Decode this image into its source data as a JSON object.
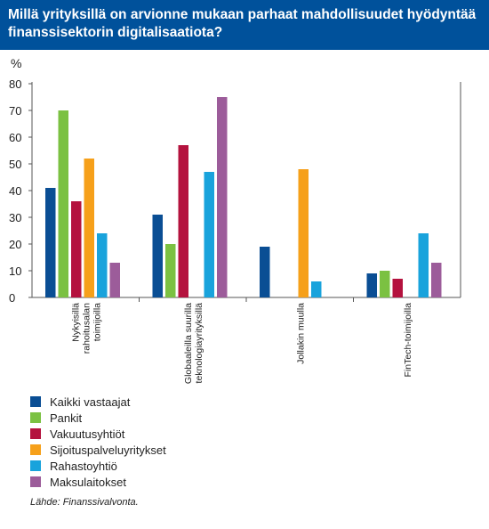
{
  "title": "Millä yrityksillä on arvionne mukaan parhaat mahdollisuudet hyödyntää finanssisektorin digitalisaatiota?",
  "source": "Lähde: Finanssivalvonta.",
  "chart_data": {
    "type": "bar",
    "ylabel": "%",
    "ylim": [
      0,
      80
    ],
    "yticks": [
      0,
      10,
      20,
      30,
      40,
      50,
      60,
      70,
      80
    ],
    "grid": false,
    "legend_position": "bottom-left",
    "categories": [
      [
        "Nykyisillä",
        "rahoitusalan",
        "toimijoilla"
      ],
      [
        "Globaaleilla suurilla",
        "teknologiayrityksillä"
      ],
      [
        "Jollakin muulla"
      ],
      [
        "FinTech-toimijoilla"
      ]
    ],
    "series": [
      {
        "name": "Kaikki vastaajat",
        "color": "#0a4e94",
        "values": [
          41,
          31,
          19,
          9
        ]
      },
      {
        "name": "Pankit",
        "color": "#7bc142",
        "values": [
          70,
          20,
          null,
          10
        ]
      },
      {
        "name": "Vakuutusyhtiöt",
        "color": "#b4123e",
        "values": [
          36,
          57,
          null,
          7
        ]
      },
      {
        "name": "Sijoituspalveluyritykset",
        "color": "#f6a01a",
        "values": [
          52,
          null,
          48,
          null
        ]
      },
      {
        "name": "Rahastoyhtiö",
        "color": "#19a3dc",
        "values": [
          24,
          47,
          6,
          24
        ]
      },
      {
        "name": "Maksulaitokset",
        "color": "#9c5c9a",
        "values": [
          13,
          75,
          null,
          13
        ]
      }
    ]
  }
}
